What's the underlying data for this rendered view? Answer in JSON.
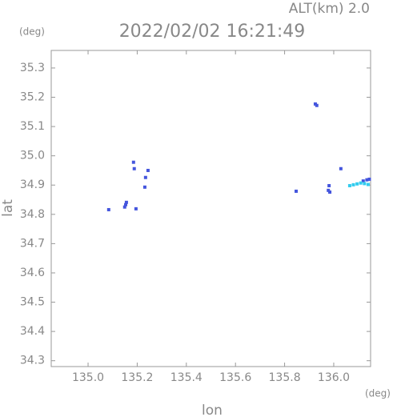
{
  "chart_data": {
    "type": "scatter",
    "title": "2022/02/02 16:21:49",
    "subtitle": "ALT(km) 2.0",
    "xlabel": "lon",
    "ylabel": "lat",
    "x_unit": "(deg)",
    "y_unit": "(deg)",
    "xlim": [
      134.85,
      136.15
    ],
    "ylim": [
      34.28,
      35.36
    ],
    "xticks": [
      {
        "value": 135,
        "label": "135.0"
      },
      135.2,
      135.4,
      135.6,
      135.8,
      {
        "value": 136,
        "label": "136.0"
      }
    ],
    "yticks": [
      34.3,
      34.4,
      34.5,
      34.6,
      34.7,
      34.8,
      34.9,
      {
        "value": 35,
        "label": "35.0"
      },
      35.1,
      35.2,
      35.3
    ],
    "series": [
      {
        "color": "#4455dd",
        "x": [
          135.084,
          135.153,
          135.149,
          135.156,
          135.195,
          135.185,
          135.188,
          135.234,
          135.231,
          135.244,
          135.925,
          135.931,
          135.847,
          135.981,
          135.984,
          135.978,
          136.029,
          136.12,
          136.135,
          136.145
        ],
        "values": [
          34.816,
          34.833,
          34.825,
          34.841,
          34.819,
          34.978,
          34.956,
          34.926,
          34.893,
          34.95,
          35.177,
          35.172,
          34.879,
          34.898,
          34.876,
          34.882,
          34.956,
          34.914,
          34.918,
          34.92
        ]
      },
      {
        "color": "#33ccee",
        "x": [
          136.065,
          136.08,
          136.095,
          136.11,
          136.125,
          136.14
        ],
        "values": [
          34.898,
          34.901,
          34.904,
          34.907,
          34.905,
          34.902
        ]
      }
    ]
  }
}
